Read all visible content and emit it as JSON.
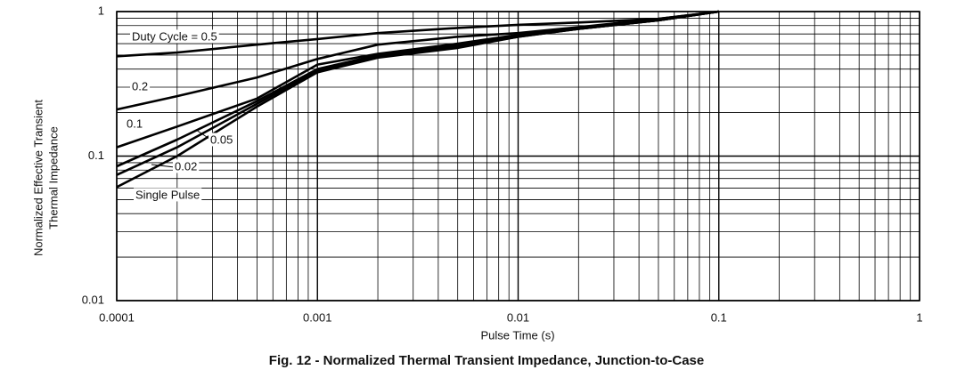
{
  "chart_data": {
    "type": "line",
    "log_x": true,
    "log_y": true,
    "grid": true,
    "minor_grid": true,
    "title": "Fig. 12 - Normalized Thermal Transient Impedance, Junction-to-Case",
    "x_label": "Pulse Time (s)",
    "y_label": [
      "Normalized Effective Transient",
      "Thermal Impedance"
    ],
    "xlim": [
      0.0001,
      1
    ],
    "xticks": [
      0.0001,
      0.001,
      0.01,
      0.1,
      1
    ],
    "ylim": [
      0.01,
      1
    ],
    "yticks": [
      0.01,
      0.1,
      1
    ],
    "x": [
      0.0001,
      0.0002,
      0.0005,
      0.001,
      0.002,
      0.005,
      0.01,
      0.02,
      0.05,
      0.1
    ],
    "series": [
      {
        "name": "Duty Cycle = 0.5",
        "color": "#000000",
        "values": [
          0.49,
          0.52,
          0.59,
          0.645,
          0.71,
          0.77,
          0.81,
          0.84,
          0.89,
          1
        ]
      },
      {
        "name": "0.2",
        "color": "#000000",
        "values": [
          0.21,
          0.26,
          0.35,
          0.47,
          0.59,
          0.67,
          0.71,
          0.78,
          0.89,
          1
        ]
      },
      {
        "name": "0.1",
        "color": "#000000",
        "values": [
          0.115,
          0.16,
          0.25,
          0.43,
          0.51,
          0.6,
          0.69,
          0.77,
          0.87,
          1
        ]
      },
      {
        "name": "0.05",
        "color": "#000000",
        "values": [
          0.085,
          0.13,
          0.24,
          0.4,
          0.5,
          0.58,
          0.68,
          0.76,
          0.87,
          1
        ]
      },
      {
        "name": "0.02",
        "color": "#000000",
        "values": [
          0.074,
          0.115,
          0.23,
          0.39,
          0.49,
          0.57,
          0.67,
          0.76,
          0.87,
          1
        ]
      },
      {
        "name": "Single Pulse",
        "color": "#000000",
        "values": [
          0.061,
          0.1,
          0.22,
          0.38,
          0.48,
          0.56,
          0.67,
          0.76,
          0.87,
          1
        ]
      }
    ]
  }
}
